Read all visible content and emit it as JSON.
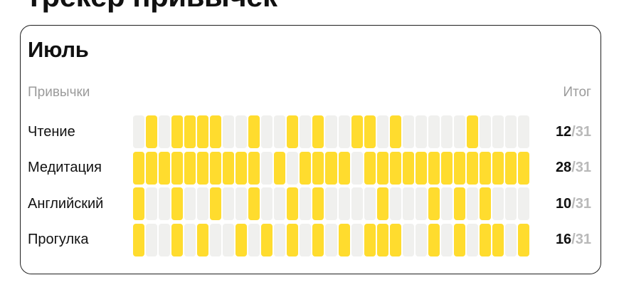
{
  "page_title": "Трекер привычек",
  "chart_data": {
    "type": "heatmap",
    "title": "Трекер привычек",
    "month_label": "Июль",
    "columns_header": {
      "habits": "Привычки",
      "total": "Итог"
    },
    "days_in_month": 31,
    "colors": {
      "filled": "#FFDC2E",
      "empty": "#F0F0EE"
    },
    "habits": [
      {
        "name": "Чтение",
        "done": 12,
        "total": 31,
        "total_suffix": "/31",
        "filled_days": [
          2,
          4,
          5,
          6,
          7,
          10,
          13,
          15,
          18,
          19,
          21,
          27
        ]
      },
      {
        "name": "Медитация",
        "done": 28,
        "total": 31,
        "total_suffix": "/31",
        "filled_days": [
          1,
          2,
          3,
          4,
          5,
          6,
          7,
          8,
          9,
          10,
          12,
          14,
          15,
          16,
          17,
          19,
          20,
          21,
          22,
          23,
          24,
          25,
          26,
          27,
          28,
          29,
          30,
          31
        ]
      },
      {
        "name": "Английский",
        "done": 10,
        "total": 31,
        "total_suffix": "/31",
        "filled_days": [
          1,
          4,
          7,
          10,
          13,
          15,
          20,
          24,
          26,
          28
        ]
      },
      {
        "name": "Прогулка",
        "done": 16,
        "total": 31,
        "total_suffix": "/31",
        "filled_days": [
          1,
          4,
          6,
          9,
          11,
          13,
          15,
          17,
          19,
          20,
          21,
          24,
          26,
          28,
          29,
          31
        ]
      }
    ]
  }
}
